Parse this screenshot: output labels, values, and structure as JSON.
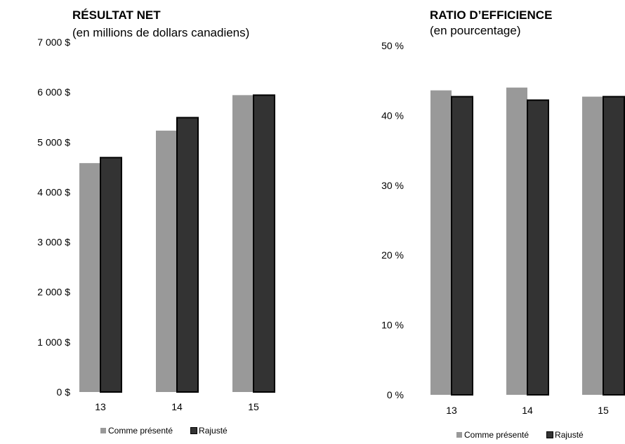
{
  "colors": {
    "comme_presente": "#999999",
    "rajuste": "#333333",
    "rajuste_border": "#000000"
  },
  "chart_data": [
    {
      "type": "bar",
      "title": "RÉSULTAT NET",
      "subtitle": "(en millions de dollars canadiens)",
      "categories": [
        "13",
        "14",
        "15"
      ],
      "series": [
        {
          "name": "Comme présenté",
          "values": [
            4580,
            5230,
            5940
          ]
        },
        {
          "name": "Rajusté",
          "values": [
            4690,
            5490,
            5940
          ]
        }
      ],
      "ylim": [
        0,
        7000
      ],
      "yticks": [
        0,
        1000,
        2000,
        3000,
        4000,
        5000,
        6000,
        7000
      ],
      "ytick_labels": [
        "0 $",
        "1 000 $",
        "2 000 $",
        "3 000 $",
        "4 000 $",
        "5 000 $",
        "6 000 $",
        "7 000 $"
      ],
      "legend": [
        "Comme présenté",
        "Rajusté"
      ],
      "legend_position": "bottom",
      "grid": false
    },
    {
      "type": "bar",
      "title": "RATIO D’EFFICIENCE",
      "subtitle": "(en pourcentage)",
      "categories": [
        "13",
        "14",
        "15"
      ],
      "series": [
        {
          "name": "Comme présenté",
          "values": [
            43.6,
            44.0,
            42.7
          ]
        },
        {
          "name": "Rajusté",
          "values": [
            42.7,
            42.2,
            42.7
          ]
        }
      ],
      "ylim": [
        0,
        50
      ],
      "yticks": [
        0,
        10,
        20,
        30,
        40,
        50
      ],
      "ytick_labels": [
        "0 %",
        "10 %",
        "20 %",
        "30 %",
        "40 %",
        "50 %"
      ],
      "legend": [
        "Comme présenté",
        "Rajusté"
      ],
      "legend_position": "bottom",
      "grid": false
    }
  ]
}
